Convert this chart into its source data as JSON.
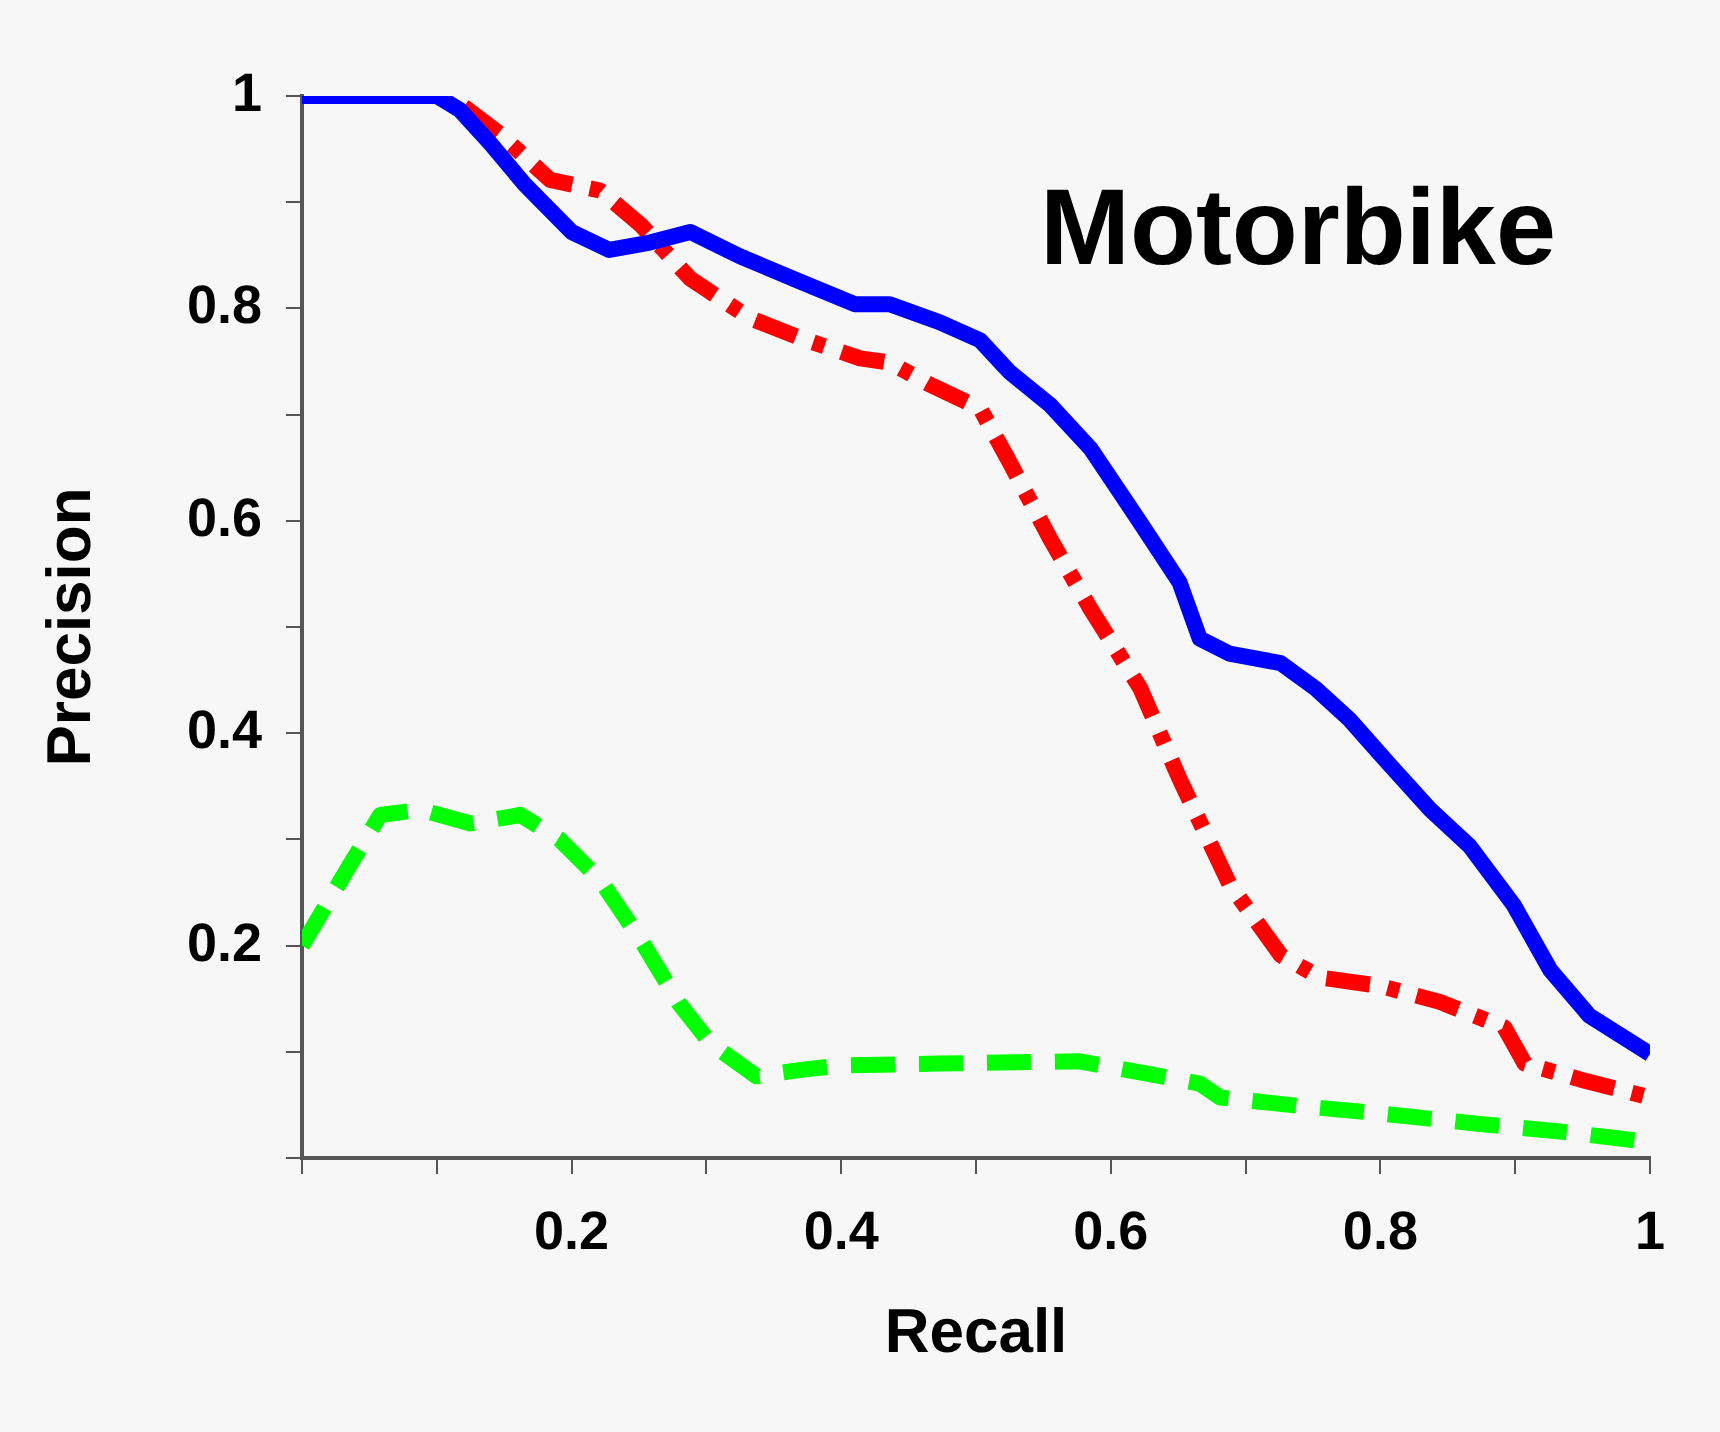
{
  "chart_data": {
    "type": "line",
    "title": "Motorbike",
    "xlabel": "Recall",
    "ylabel": "Precision",
    "xlim": [
      0,
      1
    ],
    "ylim": [
      0,
      1
    ],
    "xticks": [
      {
        "value": 0,
        "label": null
      },
      {
        "value": 0.1,
        "label": null
      },
      0.2,
      {
        "value": 0.3,
        "label": null
      },
      0.4,
      {
        "value": 0.5,
        "label": null
      },
      0.6,
      {
        "value": 0.7,
        "label": null
      },
      0.8,
      {
        "value": 0.9,
        "label": null
      },
      1
    ],
    "yticks": [
      {
        "value": 0,
        "label": null
      },
      {
        "value": 0.1,
        "label": null
      },
      0.2,
      {
        "value": 0.3,
        "label": null
      },
      0.4,
      {
        "value": 0.5,
        "label": null
      },
      0.6,
      {
        "value": 0.7,
        "label": null
      },
      0.8,
      {
        "value": 0.9,
        "label": null
      },
      1
    ],
    "grid": false,
    "legend": false,
    "marker": "none",
    "series": [
      {
        "color": "#0000ff",
        "line_style": "solid",
        "x": [
          0,
          0.1,
          0.117,
          0.14,
          0.165,
          0.2,
          0.228,
          0.258,
          0.288,
          0.325,
          0.37,
          0.41,
          0.436,
          0.473,
          0.503,
          0.525,
          0.555,
          0.585,
          0.622,
          0.651,
          0.666,
          0.688,
          0.726,
          0.752,
          0.777,
          0.807,
          0.837,
          0.866,
          0.899,
          0.926,
          0.955,
          1
        ],
        "values": [
          1,
          1,
          0.987,
          0.955,
          0.917,
          0.872,
          0.855,
          0.862,
          0.872,
          0.849,
          0.825,
          0.804,
          0.804,
          0.787,
          0.77,
          0.74,
          0.709,
          0.668,
          0.598,
          0.542,
          0.489,
          0.475,
          0.466,
          0.442,
          0.413,
          0.37,
          0.328,
          0.294,
          0.238,
          0.177,
          0.134,
          0.098
        ]
      },
      {
        "color": "#ff0000",
        "line_style": "dashdot",
        "x": [
          0.12,
          0.147,
          0.184,
          0.221,
          0.251,
          0.288,
          0.332,
          0.37,
          0.414,
          0.436,
          0.466,
          0.503,
          0.525,
          0.555,
          0.585,
          0.622,
          0.651,
          0.688,
          0.726,
          0.755,
          0.8,
          0.844,
          0.892,
          0.907,
          0.948,
          1
        ],
        "values": [
          0.99,
          0.964,
          0.921,
          0.911,
          0.879,
          0.828,
          0.791,
          0.772,
          0.753,
          0.749,
          0.728,
          0.706,
          0.655,
          0.583,
          0.517,
          0.442,
          0.357,
          0.258,
          0.191,
          0.17,
          0.162,
          0.147,
          0.123,
          0.089,
          0.074,
          0.057
        ]
      },
      {
        "color": "#00ff00",
        "line_style": "dashed",
        "x": [
          0,
          0.036,
          0.058,
          0.088,
          0.125,
          0.162,
          0.191,
          0.221,
          0.251,
          0.28,
          0.303,
          0.337,
          0.37,
          0.399,
          0.473,
          0.577,
          0.637,
          0.666,
          0.681,
          0.74,
          0.8,
          0.874,
          0.933,
          1
        ],
        "values": [
          0.2,
          0.277,
          0.323,
          0.328,
          0.315,
          0.323,
          0.3,
          0.262,
          0.206,
          0.145,
          0.108,
          0.077,
          0.083,
          0.087,
          0.089,
          0.091,
          0.077,
          0.07,
          0.057,
          0.049,
          0.042,
          0.032,
          0.025,
          0.015
        ]
      }
    ]
  }
}
